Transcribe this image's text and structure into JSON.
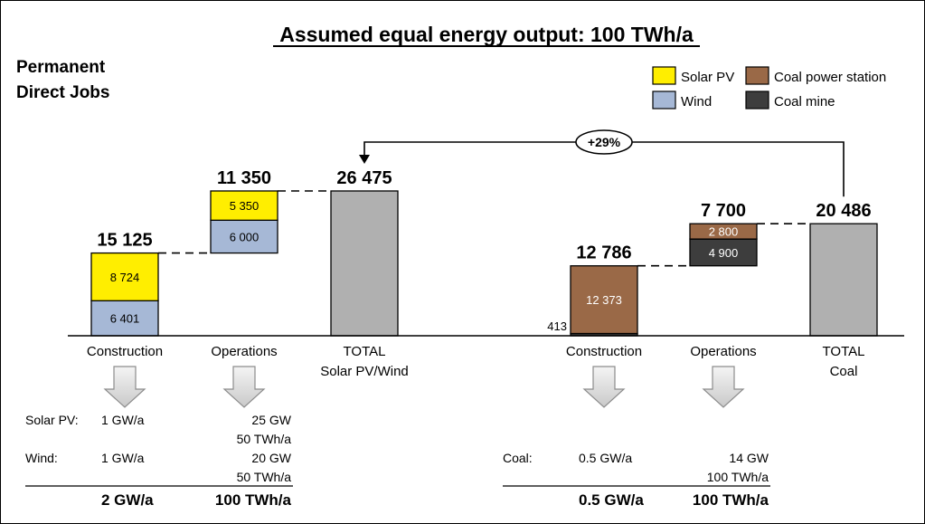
{
  "chart_data": {
    "type": "waterfall-stacked-bar",
    "title": "Assumed equal energy output: 100 TWh/a",
    "subtitle": [
      "Permanent",
      "Direct Jobs"
    ],
    "colors": {
      "solar": "#ffee00",
      "wind": "#a6b8d6",
      "coal_power_station": "#9a6947",
      "coal_mine": "#3d3d3d",
      "total": "#b0b0b0"
    },
    "legend": [
      {
        "key": "solar",
        "label": "Solar PV"
      },
      {
        "key": "coal_power_station",
        "label": "Coal power station"
      },
      {
        "key": "wind",
        "label": "Wind"
      },
      {
        "key": "coal_mine",
        "label": "Coal mine"
      }
    ],
    "groups": [
      {
        "name": "solar_wind",
        "bars": [
          {
            "category": "Construction",
            "category_lines": [
              "Construction"
            ],
            "kind": "stack",
            "base": 0,
            "segments": [
              {
                "key": "wind",
                "value": 6401,
                "label": "6 401"
              },
              {
                "key": "solar",
                "value": 8724,
                "label": "8 724"
              }
            ],
            "total_label": "15 125"
          },
          {
            "category": "Operations",
            "category_lines": [
              "Operations"
            ],
            "kind": "stack",
            "base": 15125,
            "segments": [
              {
                "key": "wind",
                "value": 6000,
                "label": "6 000"
              },
              {
                "key": "solar",
                "value": 5350,
                "label": "5 350"
              }
            ],
            "total_label": "11 350"
          },
          {
            "category": "TOTAL Solar PV/Wind",
            "category_lines": [
              "TOTAL",
              "Solar PV/Wind"
            ],
            "kind": "total",
            "base": 0,
            "segments": [
              {
                "key": "total",
                "value": 26475,
                "label": ""
              }
            ],
            "total_label": "26 475"
          }
        ]
      },
      {
        "name": "coal",
        "bars": [
          {
            "category": "Construction",
            "category_lines": [
              "Construction"
            ],
            "kind": "stack",
            "base": 0,
            "segments": [
              {
                "key": "coal_mine",
                "value": 413,
                "label": "413",
                "label_outside": true
              },
              {
                "key": "coal_power_station",
                "value": 12373,
                "label": "12 373"
              }
            ],
            "total_label": "12 786"
          },
          {
            "category": "Operations",
            "category_lines": [
              "Operations"
            ],
            "kind": "stack",
            "base": 12786,
            "segments": [
              {
                "key": "coal_mine",
                "value": 4900,
                "label": "4 900"
              },
              {
                "key": "coal_power_station",
                "value": 2800,
                "label": "2 800"
              }
            ],
            "total_label": "7 700"
          },
          {
            "category": "TOTAL Coal",
            "category_lines": [
              "TOTAL",
              "Coal"
            ],
            "kind": "total",
            "base": 0,
            "segments": [
              {
                "key": "total",
                "value": 20486,
                "label": ""
              }
            ],
            "total_label": "20 486"
          }
        ]
      }
    ],
    "comparison": {
      "label": "+29%",
      "from": "TOTAL Coal",
      "to": "TOTAL Solar PV/Wind"
    },
    "ylim": [
      0,
      30000
    ]
  },
  "capacity_tables": {
    "renewables": {
      "rows": [
        {
          "label": "Solar PV:",
          "construction": "1 GW/a",
          "operations": [
            "25 GW",
            "50 TWh/a"
          ]
        },
        {
          "label": "Wind:",
          "construction": "1 GW/a",
          "operations": [
            "20 GW",
            "50 TWh/a"
          ]
        }
      ],
      "totals": {
        "construction": "2 GW/a",
        "operations": "100 TWh/a"
      }
    },
    "coal": {
      "rows": [
        {
          "label": "Coal:",
          "construction": "0.5 GW/a",
          "operations": [
            "14 GW",
            "100 TWh/a"
          ]
        }
      ],
      "totals": {
        "construction": "0.5 GW/a",
        "operations": "100 TWh/a"
      }
    }
  }
}
